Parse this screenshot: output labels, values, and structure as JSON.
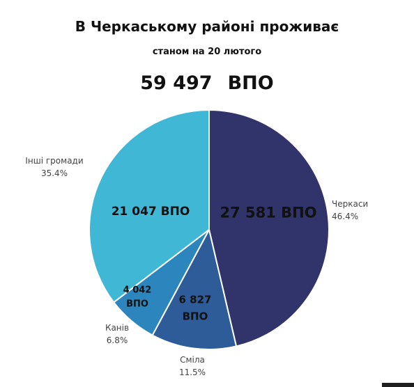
{
  "chart_data": {
    "type": "pie",
    "title": "В Черкаському районі проживає",
    "subtitle": "станом на 20 лютого",
    "total": {
      "value": "59 497",
      "unit": "ВПО"
    },
    "slices": [
      {
        "name": "Черкаси",
        "value": 27581,
        "value_label": [
          "27 581 ВПО"
        ],
        "percent": "46.4%",
        "color": "#30346b"
      },
      {
        "name": "Сміла",
        "value": 6827,
        "value_label": [
          "6 827",
          "ВПО"
        ],
        "percent": "11.5%",
        "color": "#2d5c98"
      },
      {
        "name": "Канів",
        "value": 4042,
        "value_label": [
          "4 042",
          "ВПО"
        ],
        "percent": "6.8%",
        "color": "#2c86bd"
      },
      {
        "name": "Інші громади",
        "value": 21047,
        "value_label": [
          "21 047 ВПО"
        ],
        "percent": "35.4%",
        "color": "#41b7d6"
      }
    ]
  }
}
